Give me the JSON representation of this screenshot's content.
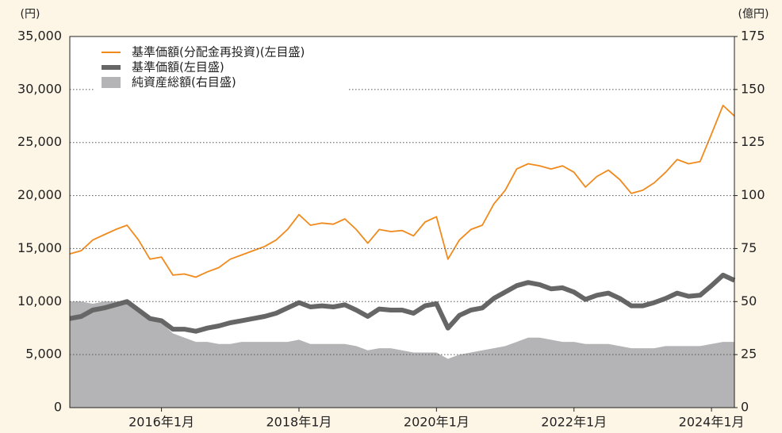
{
  "chart_data": {
    "type": "line",
    "y_axis_label": "(円)",
    "y2_axis_label": "(億円)",
    "x": [
      "2014-09",
      "2014-11",
      "2015-01",
      "2015-03",
      "2015-05",
      "2015-07",
      "2015-09",
      "2015-11",
      "2016-01",
      "2016-03",
      "2016-05",
      "2016-07",
      "2016-09",
      "2016-11",
      "2017-01",
      "2017-03",
      "2017-05",
      "2017-07",
      "2017-09",
      "2017-11",
      "2018-01",
      "2018-03",
      "2018-05",
      "2018-07",
      "2018-09",
      "2018-11",
      "2019-01",
      "2019-03",
      "2019-05",
      "2019-07",
      "2019-09",
      "2019-11",
      "2020-01",
      "2020-03",
      "2020-05",
      "2020-07",
      "2020-09",
      "2020-11",
      "2021-01",
      "2021-03",
      "2021-05",
      "2021-07",
      "2021-09",
      "2021-11",
      "2022-01",
      "2022-03",
      "2022-05",
      "2022-07",
      "2022-09",
      "2022-11",
      "2023-01",
      "2023-03",
      "2023-05",
      "2023-07",
      "2023-09",
      "2023-11",
      "2024-01",
      "2024-03",
      "2024-05"
    ],
    "xlim": [
      "2014-09",
      "2024-05"
    ],
    "xticks": [
      {
        "value": "2016-01",
        "label": "2016年1月"
      },
      {
        "value": "2018-01",
        "label": "2018年1月"
      },
      {
        "value": "2020-01",
        "label": "2020年1月"
      },
      {
        "value": "2022-01",
        "label": "2022年1月"
      },
      {
        "value": "2024-01",
        "label": "2024年1月"
      }
    ],
    "ylim": [
      0,
      35000
    ],
    "yticks": [
      0,
      {
        "value": 5000,
        "label": "5,000"
      },
      {
        "value": 10000,
        "label": "10,000"
      },
      {
        "value": 15000,
        "label": "15,000"
      },
      {
        "value": 20000,
        "label": "20,000"
      },
      {
        "value": 25000,
        "label": "25,000"
      },
      {
        "value": 30000,
        "label": "30,000"
      },
      {
        "value": 35000,
        "label": "35,000"
      }
    ],
    "y2lim": [
      0,
      175
    ],
    "y2ticks": [
      0,
      25,
      50,
      75,
      100,
      125,
      150,
      175
    ],
    "grid": true,
    "legend": "upper left",
    "series": [
      {
        "name": "基準価額(分配金再投資)(左目盛)",
        "color": "#f08a1c",
        "style": "line",
        "values": [
          14500,
          14800,
          15800,
          16300,
          16800,
          17200,
          15800,
          14000,
          14200,
          12500,
          12600,
          12300,
          12800,
          13200,
          14000,
          14400,
          14800,
          15200,
          15800,
          16800,
          18200,
          17200,
          17400,
          17300,
          17800,
          16800,
          15500,
          16800,
          16600,
          16700,
          16200,
          17500,
          18000,
          14000,
          15800,
          16800,
          17200,
          19200,
          20500,
          22500,
          23000,
          22800,
          22500,
          22800,
          22200,
          20800,
          21800,
          22400,
          21500,
          20200,
          20500,
          21200,
          22200,
          23400,
          23000,
          23200,
          25800,
          28500,
          27500
        ]
      },
      {
        "name": "基準価額(左目盛)",
        "color": "#666666",
        "style": "thick-line",
        "values": [
          8400,
          8600,
          9200,
          9400,
          9700,
          10000,
          9200,
          8400,
          8200,
          7400,
          7400,
          7200,
          7500,
          7700,
          8000,
          8200,
          8400,
          8600,
          8900,
          9400,
          9900,
          9500,
          9600,
          9500,
          9700,
          9200,
          8600,
          9300,
          9200,
          9200,
          8900,
          9600,
          9800,
          7500,
          8700,
          9200,
          9400,
          10300,
          10900,
          11500,
          11800,
          11600,
          11200,
          11300,
          10900,
          10200,
          10600,
          10800,
          10300,
          9600,
          9600,
          9900,
          10300,
          10800,
          10500,
          10600,
          11500,
          12500,
          12000
        ]
      },
      {
        "name": "純資産総額(右目盛)",
        "color": "#b4b4b6",
        "style": "area",
        "axis": "y2",
        "values": [
          50,
          50,
          49,
          50,
          50,
          50,
          46,
          42,
          40,
          35,
          33,
          31,
          31,
          30,
          30,
          31,
          31,
          31,
          31,
          31,
          32,
          30,
          30,
          30,
          30,
          29,
          27,
          28,
          28,
          27,
          26,
          26,
          26,
          23,
          25,
          26,
          27,
          28,
          29,
          31,
          33,
          33,
          32,
          31,
          31,
          30,
          30,
          30,
          29,
          28,
          28,
          28,
          29,
          29,
          29,
          29,
          30,
          31,
          31
        ]
      }
    ]
  }
}
